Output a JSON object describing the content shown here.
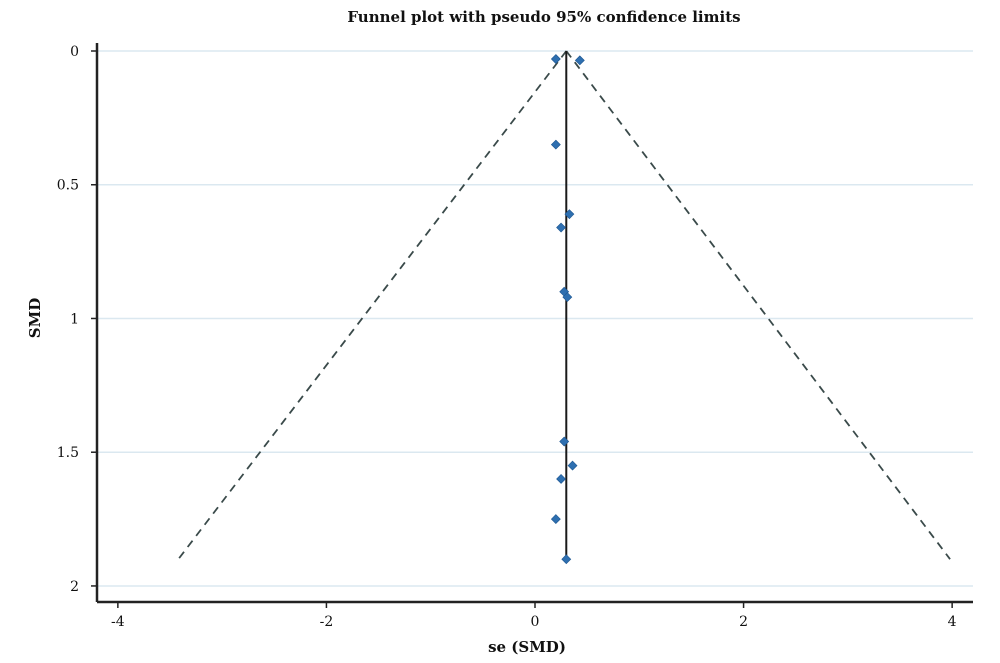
{
  "chart_data": {
    "type": "scatter",
    "title": "Funnel plot with pseudo 95% confidence limits",
    "xlabel": "se (SMD)",
    "ylabel": "SMD",
    "xlim": [
      -4.2,
      4.2
    ],
    "ylim": [
      0,
      2.06
    ],
    "y_reversed": true,
    "xticks": [
      -4,
      -2,
      0,
      2,
      4
    ],
    "yticks": [
      0,
      0.5,
      1,
      1.5,
      2
    ],
    "xtick_labels": [
      "-4",
      "-2",
      "0",
      "2",
      "4"
    ],
    "ytick_labels": [
      "0",
      "0.5",
      "1",
      "1.5",
      "2"
    ],
    "grid": "horizontal",
    "points": [
      {
        "x": 0.2,
        "y": 0.03
      },
      {
        "x": 0.43,
        "y": 0.035
      },
      {
        "x": 0.2,
        "y": 0.35
      },
      {
        "x": 0.33,
        "y": 0.61
      },
      {
        "x": 0.25,
        "y": 0.66
      },
      {
        "x": 0.28,
        "y": 0.9
      },
      {
        "x": 0.31,
        "y": 0.92
      },
      {
        "x": 0.28,
        "y": 1.46
      },
      {
        "x": 0.36,
        "y": 1.55
      },
      {
        "x": 0.25,
        "y": 1.6
      },
      {
        "x": 0.2,
        "y": 1.75
      },
      {
        "x": 0.3,
        "y": 1.9
      }
    ],
    "pooled_estimate": {
      "x": 0.3,
      "y_range": [
        0,
        1.9
      ]
    },
    "ci_limits": {
      "apex": {
        "x": 0.3,
        "y": 0
      },
      "left_end": {
        "x": -3.42,
        "y": 1.9
      },
      "right_end": {
        "x": 3.98,
        "y": 1.9
      }
    },
    "colors": {
      "point": "#2e6fb0",
      "pooled_line": "#1a1a1a",
      "ci_line": "#3a4a4a",
      "axis": "#222222",
      "grid": "#dbe8f0"
    }
  }
}
